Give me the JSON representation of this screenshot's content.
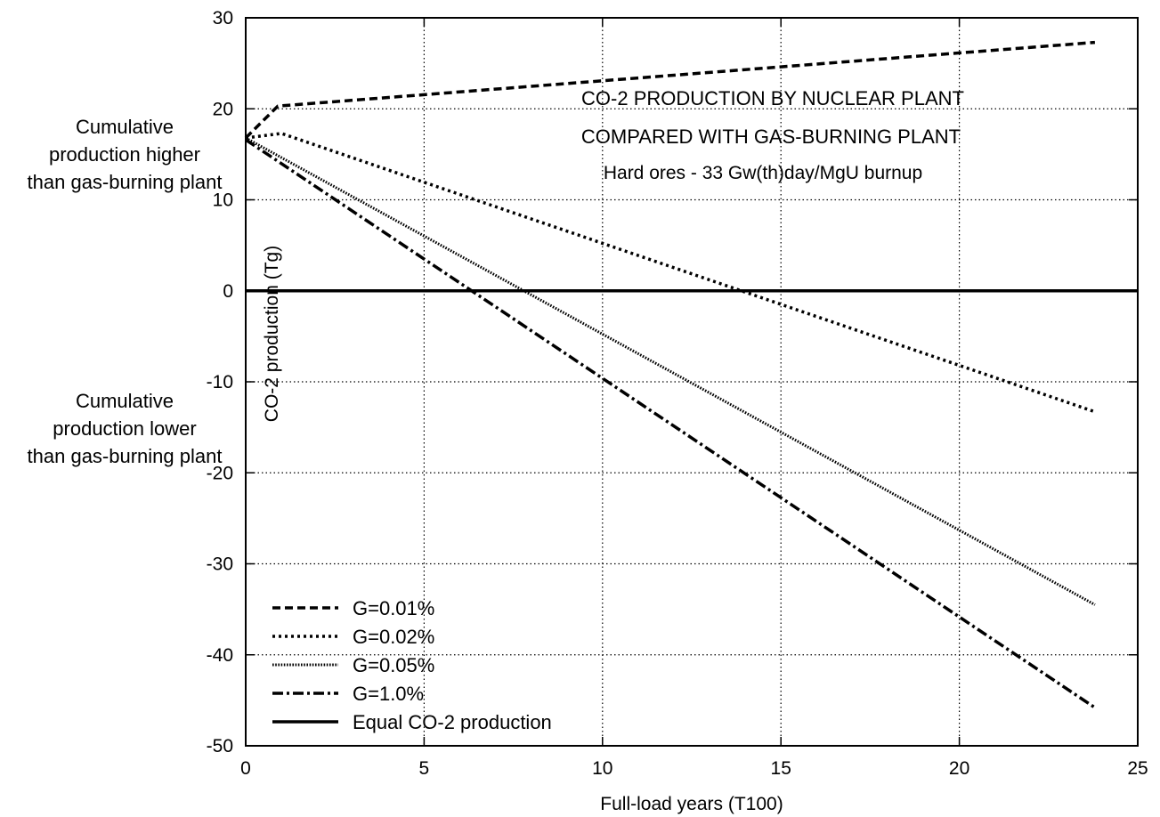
{
  "chart_data": {
    "type": "line",
    "title": "CO-2 PRODUCTION BY NUCLEAR PLANT",
    "subtitle": "COMPARED WITH GAS-BURNING PLANT",
    "annotation": "Hard ores - 33 Gw(th)day/MgU burnup",
    "xlabel": "Full-load years (T100)",
    "ylabel": "CO-2 production (Tg)",
    "xlim": [
      0,
      25
    ],
    "ylim": [
      -50,
      30
    ],
    "xticks": [
      0,
      5,
      10,
      15,
      20,
      25
    ],
    "yticks": [
      30,
      20,
      10,
      0,
      -10,
      -20,
      -30,
      -40,
      -50
    ],
    "xtick_labels": [
      "0",
      "5",
      "10",
      "15",
      "20",
      "25"
    ],
    "ytick_labels": [
      "30",
      "20",
      "10",
      "0",
      "-10",
      "-20",
      "-30",
      "-40",
      "-50"
    ],
    "grid": true,
    "legend_position": "bottom-left",
    "side_notes": [
      {
        "lines": [
          "Cumulative",
          "production higher",
          "than gas-burning plant"
        ]
      },
      {
        "lines": [
          "Cumulative",
          "production lower",
          "than gas-burning plant"
        ]
      }
    ],
    "series": [
      {
        "name": "G=0.01%",
        "style": "dashed",
        "x": [
          0,
          0.9,
          23.8
        ],
        "y": [
          16.8,
          20.3,
          27.3
        ]
      },
      {
        "name": "G=0.02%",
        "style": "dotted",
        "x": [
          0,
          1.0,
          23.8
        ],
        "y": [
          16.8,
          17.3,
          -13.3
        ]
      },
      {
        "name": "G=0.05%",
        "style": "fine-dotted",
        "x": [
          0,
          23.8
        ],
        "y": [
          16.8,
          -34.5
        ]
      },
      {
        "name": "G=1.0%",
        "style": "dash-dot",
        "x": [
          0,
          23.8
        ],
        "y": [
          16.6,
          -45.8
        ]
      },
      {
        "name": "Equal CO-2 production",
        "style": "solid",
        "x": [
          0,
          25
        ],
        "y": [
          0,
          0
        ]
      }
    ]
  }
}
